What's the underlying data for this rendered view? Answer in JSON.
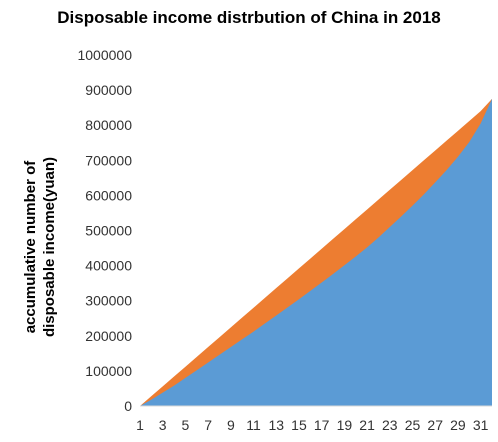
{
  "chart_data": {
    "type": "area",
    "title": "Disposable income distrbution of China in 2018",
    "ylabel": "accumulative number of disposable income(yuan)",
    "xlabel": "",
    "ylim": [
      0,
      1000000
    ],
    "y_ticks": [
      "0",
      "100000",
      "200000",
      "300000",
      "400000",
      "500000",
      "600000",
      "700000",
      "800000",
      "900000",
      "1000000"
    ],
    "x_tick_labels": [
      "1",
      "3",
      "5",
      "7",
      "9",
      "11",
      "13",
      "15",
      "17",
      "19",
      "21",
      "23",
      "25",
      "27",
      "29",
      "31"
    ],
    "x": [
      1,
      2,
      3,
      4,
      5,
      6,
      7,
      8,
      9,
      10,
      11,
      12,
      13,
      14,
      15,
      16,
      17,
      18,
      19,
      20,
      21,
      22,
      23,
      24,
      25,
      26,
      27,
      28,
      29,
      30,
      31,
      32
    ],
    "series": [
      {
        "color": "#ED7D31",
        "values": [
          0,
          28000,
          56000,
          84000,
          112000,
          140000,
          168000,
          196000,
          224000,
          252000,
          280000,
          308000,
          336000,
          364000,
          392000,
          420000,
          448000,
          476000,
          504000,
          532000,
          560000,
          588000,
          616000,
          644000,
          672000,
          700000,
          728000,
          756000,
          784000,
          812000,
          840000,
          875000
        ]
      },
      {
        "color": "#5B9BD5",
        "values": [
          0,
          18000,
          38000,
          58000,
          80000,
          102000,
          124000,
          146000,
          168000,
          190000,
          212000,
          235000,
          258000,
          281000,
          304000,
          328000,
          352000,
          376000,
          401000,
          426000,
          452000,
          480000,
          510000,
          540000,
          571000,
          603000,
          637000,
          672000,
          710000,
          752000,
          805000,
          875000
        ]
      }
    ],
    "grid": false,
    "legend": "none"
  }
}
